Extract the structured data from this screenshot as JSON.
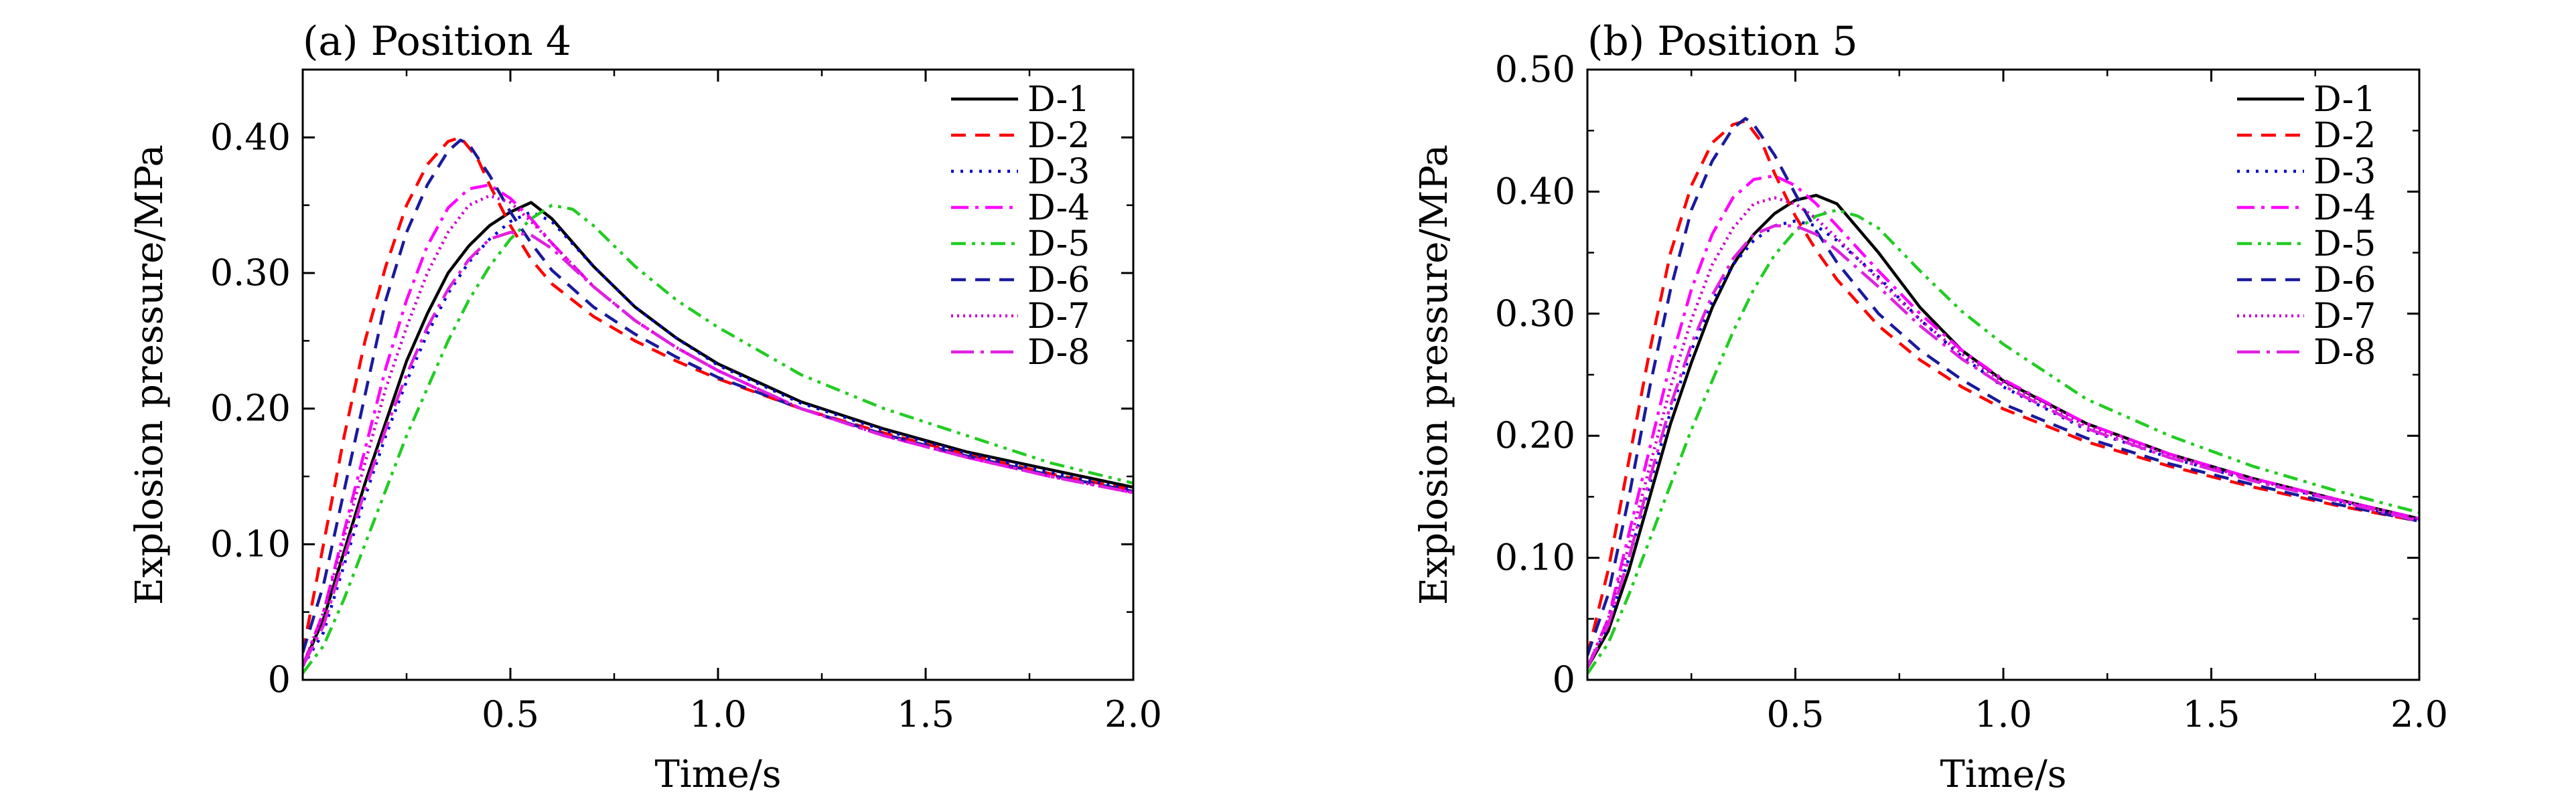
{
  "chart_data": [
    {
      "type": "line",
      "title": "(a) Position 4",
      "xlabel": "Time/s",
      "ylabel": "Explosion pressure/MPa",
      "xlim": [
        0,
        2.0
      ],
      "ylim": [
        0,
        0.45
      ],
      "xticks": [
        0.5,
        1.0,
        1.5,
        2.0
      ],
      "xtick_labels": [
        "0.5",
        "1.0",
        "1.5",
        "2.0"
      ],
      "yticks": [
        0,
        0.1,
        0.2,
        0.3,
        0.4
      ],
      "ytick_labels": [
        "0",
        "0.10",
        "0.20",
        "0.30",
        "0.40"
      ],
      "grid": false,
      "legend_position": "top-right",
      "series": [
        {
          "name": "D-1",
          "color": "#000000",
          "dash": "solid",
          "x": [
            0,
            0.05,
            0.1,
            0.15,
            0.2,
            0.25,
            0.3,
            0.35,
            0.4,
            0.45,
            0.5,
            0.55,
            0.6,
            0.7,
            0.8,
            0.9,
            1.0,
            1.2,
            1.4,
            1.6,
            1.8,
            2.0
          ],
          "y": [
            0.01,
            0.045,
            0.095,
            0.145,
            0.19,
            0.235,
            0.27,
            0.3,
            0.32,
            0.335,
            0.345,
            0.352,
            0.34,
            0.305,
            0.275,
            0.252,
            0.233,
            0.205,
            0.185,
            0.168,
            0.155,
            0.142
          ]
        },
        {
          "name": "D-2",
          "color": "#ff0000",
          "dash": "dashed",
          "x": [
            0,
            0.05,
            0.1,
            0.15,
            0.2,
            0.25,
            0.3,
            0.35,
            0.38,
            0.42,
            0.45,
            0.5,
            0.55,
            0.6,
            0.7,
            0.8,
            0.9,
            1.0,
            1.2,
            1.4,
            1.6,
            1.8,
            2.0
          ],
          "y": [
            0.02,
            0.1,
            0.18,
            0.25,
            0.305,
            0.35,
            0.38,
            0.397,
            0.4,
            0.385,
            0.365,
            0.335,
            0.31,
            0.292,
            0.268,
            0.25,
            0.235,
            0.222,
            0.2,
            0.182,
            0.166,
            0.152,
            0.14
          ]
        },
        {
          "name": "D-3",
          "color": "#0000cc",
          "dash": "dotted",
          "x": [
            0,
            0.05,
            0.1,
            0.15,
            0.2,
            0.25,
            0.3,
            0.35,
            0.4,
            0.45,
            0.5,
            0.55,
            0.6,
            0.7,
            0.8,
            0.9,
            1.0,
            1.2,
            1.4,
            1.6,
            1.8,
            2.0
          ],
          "y": [
            0.01,
            0.035,
            0.085,
            0.135,
            0.18,
            0.22,
            0.255,
            0.285,
            0.308,
            0.325,
            0.338,
            0.345,
            0.338,
            0.305,
            0.275,
            0.252,
            0.232,
            0.204,
            0.184,
            0.167,
            0.153,
            0.14
          ]
        },
        {
          "name": "D-4",
          "color": "#ff00ff",
          "dash": "dashdot",
          "x": [
            0,
            0.05,
            0.1,
            0.15,
            0.2,
            0.25,
            0.3,
            0.35,
            0.4,
            0.45,
            0.5,
            0.55,
            0.6,
            0.7,
            0.8,
            0.9,
            1.0,
            1.2,
            1.4,
            1.6,
            1.8,
            2.0
          ],
          "y": [
            0.01,
            0.05,
            0.11,
            0.17,
            0.23,
            0.28,
            0.32,
            0.348,
            0.362,
            0.365,
            0.355,
            0.34,
            0.322,
            0.29,
            0.265,
            0.245,
            0.228,
            0.2,
            0.18,
            0.164,
            0.15,
            0.138
          ]
        },
        {
          "name": "D-5",
          "color": "#22cc22",
          "dash": "dashdotdot",
          "x": [
            0,
            0.05,
            0.1,
            0.15,
            0.2,
            0.25,
            0.3,
            0.35,
            0.4,
            0.45,
            0.5,
            0.55,
            0.6,
            0.65,
            0.7,
            0.8,
            0.9,
            1.0,
            1.2,
            1.4,
            1.6,
            1.8,
            2.0
          ],
          "y": [
            0.005,
            0.025,
            0.06,
            0.1,
            0.14,
            0.18,
            0.215,
            0.25,
            0.28,
            0.305,
            0.325,
            0.34,
            0.35,
            0.347,
            0.335,
            0.305,
            0.28,
            0.26,
            0.225,
            0.2,
            0.18,
            0.16,
            0.145
          ]
        },
        {
          "name": "D-6",
          "color": "#1a1a9e",
          "dash": "dashed",
          "x": [
            0,
            0.05,
            0.1,
            0.15,
            0.2,
            0.25,
            0.3,
            0.35,
            0.38,
            0.4,
            0.45,
            0.5,
            0.55,
            0.6,
            0.7,
            0.8,
            0.9,
            1.0,
            1.2,
            1.4,
            1.6,
            1.8,
            2.0
          ],
          "y": [
            0.02,
            0.07,
            0.14,
            0.21,
            0.28,
            0.33,
            0.365,
            0.39,
            0.398,
            0.395,
            0.372,
            0.345,
            0.322,
            0.302,
            0.275,
            0.255,
            0.238,
            0.223,
            0.2,
            0.181,
            0.165,
            0.151,
            0.139
          ]
        },
        {
          "name": "D-7",
          "color": "#cc00cc",
          "dash": "densedot",
          "x": [
            0,
            0.05,
            0.1,
            0.15,
            0.2,
            0.25,
            0.3,
            0.35,
            0.4,
            0.45,
            0.5,
            0.55,
            0.6,
            0.7,
            0.8,
            0.9,
            1.0,
            1.2,
            1.4,
            1.6,
            1.8,
            2.0
          ],
          "y": [
            0.01,
            0.05,
            0.105,
            0.16,
            0.215,
            0.26,
            0.3,
            0.33,
            0.35,
            0.357,
            0.352,
            0.338,
            0.322,
            0.29,
            0.265,
            0.245,
            0.228,
            0.2,
            0.18,
            0.164,
            0.15,
            0.138
          ]
        },
        {
          "name": "D-8",
          "color": "#e020e0",
          "dash": "longdashdot",
          "x": [
            0,
            0.05,
            0.1,
            0.15,
            0.2,
            0.25,
            0.3,
            0.35,
            0.4,
            0.45,
            0.5,
            0.55,
            0.6,
            0.7,
            0.8,
            0.9,
            1.0,
            1.2,
            1.4,
            1.6,
            1.8,
            2.0
          ],
          "y": [
            0.01,
            0.04,
            0.09,
            0.14,
            0.185,
            0.225,
            0.26,
            0.288,
            0.31,
            0.325,
            0.33,
            0.328,
            0.318,
            0.29,
            0.265,
            0.245,
            0.228,
            0.2,
            0.18,
            0.164,
            0.15,
            0.138
          ]
        }
      ]
    },
    {
      "type": "line",
      "title": "(b) Position 5",
      "xlabel": "Time/s",
      "ylabel": "Explosion pressure/MPa",
      "xlim": [
        0,
        2.0
      ],
      "ylim": [
        0,
        0.5
      ],
      "xticks": [
        0.5,
        1.0,
        1.5,
        2.0
      ],
      "xtick_labels": [
        "0.5",
        "1.0",
        "1.5",
        "2.0"
      ],
      "yticks": [
        0,
        0.1,
        0.2,
        0.3,
        0.4,
        0.5
      ],
      "ytick_labels": [
        "0",
        "0.10",
        "0.20",
        "0.30",
        "0.40",
        "0.50"
      ],
      "grid": false,
      "legend_position": "top-right",
      "series": [
        {
          "name": "D-1",
          "color": "#000000",
          "dash": "solid",
          "x": [
            0,
            0.05,
            0.1,
            0.15,
            0.2,
            0.25,
            0.3,
            0.35,
            0.4,
            0.45,
            0.5,
            0.55,
            0.6,
            0.7,
            0.8,
            0.9,
            1.0,
            1.2,
            1.4,
            1.6,
            1.8,
            2.0
          ],
          "y": [
            0.01,
            0.04,
            0.09,
            0.15,
            0.21,
            0.26,
            0.305,
            0.34,
            0.365,
            0.382,
            0.393,
            0.397,
            0.39,
            0.35,
            0.305,
            0.27,
            0.245,
            0.21,
            0.185,
            0.165,
            0.148,
            0.132
          ]
        },
        {
          "name": "D-2",
          "color": "#ff0000",
          "dash": "dashed",
          "x": [
            0,
            0.05,
            0.1,
            0.15,
            0.2,
            0.25,
            0.3,
            0.35,
            0.38,
            0.42,
            0.45,
            0.5,
            0.55,
            0.6,
            0.7,
            0.8,
            0.9,
            1.0,
            1.2,
            1.4,
            1.6,
            1.8,
            2.0
          ],
          "y": [
            0.02,
            0.09,
            0.18,
            0.27,
            0.35,
            0.405,
            0.44,
            0.455,
            0.458,
            0.44,
            0.415,
            0.38,
            0.352,
            0.328,
            0.29,
            0.262,
            0.24,
            0.222,
            0.195,
            0.175,
            0.158,
            0.143,
            0.13
          ]
        },
        {
          "name": "D-3",
          "color": "#0000cc",
          "dash": "dotted",
          "x": [
            0,
            0.05,
            0.1,
            0.15,
            0.2,
            0.25,
            0.3,
            0.35,
            0.4,
            0.45,
            0.5,
            0.55,
            0.6,
            0.7,
            0.8,
            0.9,
            1.0,
            1.2,
            1.4,
            1.6,
            1.8,
            2.0
          ],
          "y": [
            0.01,
            0.045,
            0.1,
            0.16,
            0.22,
            0.27,
            0.31,
            0.34,
            0.36,
            0.372,
            0.376,
            0.372,
            0.36,
            0.33,
            0.295,
            0.265,
            0.24,
            0.205,
            0.182,
            0.163,
            0.147,
            0.13
          ]
        },
        {
          "name": "D-4",
          "color": "#ff00ff",
          "dash": "dashdot",
          "x": [
            0,
            0.05,
            0.1,
            0.15,
            0.2,
            0.25,
            0.3,
            0.35,
            0.4,
            0.45,
            0.5,
            0.55,
            0.6,
            0.7,
            0.8,
            0.9,
            1.0,
            1.2,
            1.4,
            1.6,
            1.8,
            2.0
          ],
          "y": [
            0.01,
            0.05,
            0.12,
            0.19,
            0.26,
            0.32,
            0.365,
            0.395,
            0.41,
            0.413,
            0.405,
            0.39,
            0.372,
            0.335,
            0.3,
            0.27,
            0.246,
            0.21,
            0.185,
            0.165,
            0.148,
            0.132
          ]
        },
        {
          "name": "D-5",
          "color": "#22cc22",
          "dash": "dashdotdot",
          "x": [
            0,
            0.05,
            0.1,
            0.15,
            0.2,
            0.25,
            0.3,
            0.35,
            0.4,
            0.45,
            0.5,
            0.55,
            0.6,
            0.65,
            0.7,
            0.8,
            0.9,
            1.0,
            1.2,
            1.4,
            1.6,
            1.8,
            2.0
          ],
          "y": [
            0.005,
            0.03,
            0.07,
            0.115,
            0.16,
            0.205,
            0.245,
            0.285,
            0.32,
            0.348,
            0.368,
            0.38,
            0.385,
            0.38,
            0.37,
            0.335,
            0.302,
            0.275,
            0.23,
            0.2,
            0.175,
            0.155,
            0.137
          ]
        },
        {
          "name": "D-6",
          "color": "#1a1a9e",
          "dash": "dashed",
          "x": [
            0,
            0.05,
            0.1,
            0.15,
            0.2,
            0.25,
            0.3,
            0.35,
            0.38,
            0.4,
            0.45,
            0.5,
            0.55,
            0.6,
            0.7,
            0.8,
            0.9,
            1.0,
            1.2,
            1.4,
            1.6,
            1.8,
            2.0
          ],
          "y": [
            0.02,
            0.07,
            0.15,
            0.24,
            0.32,
            0.385,
            0.425,
            0.452,
            0.46,
            0.455,
            0.43,
            0.398,
            0.368,
            0.342,
            0.3,
            0.27,
            0.246,
            0.226,
            0.198,
            0.177,
            0.16,
            0.144,
            0.13
          ]
        },
        {
          "name": "D-7",
          "color": "#cc00cc",
          "dash": "densedot",
          "x": [
            0,
            0.05,
            0.1,
            0.15,
            0.2,
            0.25,
            0.3,
            0.35,
            0.4,
            0.45,
            0.5,
            0.55,
            0.6,
            0.7,
            0.8,
            0.9,
            1.0,
            1.2,
            1.4,
            1.6,
            1.8,
            2.0
          ],
          "y": [
            0.01,
            0.05,
            0.11,
            0.175,
            0.24,
            0.295,
            0.34,
            0.37,
            0.39,
            0.395,
            0.39,
            0.378,
            0.362,
            0.328,
            0.295,
            0.267,
            0.244,
            0.208,
            0.184,
            0.164,
            0.148,
            0.131
          ]
        },
        {
          "name": "D-8",
          "color": "#e020e0",
          "dash": "longdashdot",
          "x": [
            0,
            0.05,
            0.1,
            0.15,
            0.2,
            0.25,
            0.3,
            0.35,
            0.4,
            0.45,
            0.5,
            0.55,
            0.6,
            0.7,
            0.8,
            0.9,
            1.0,
            1.2,
            1.4,
            1.6,
            1.8,
            2.0
          ],
          "y": [
            0.01,
            0.045,
            0.1,
            0.165,
            0.225,
            0.275,
            0.315,
            0.345,
            0.365,
            0.372,
            0.372,
            0.365,
            0.352,
            0.322,
            0.29,
            0.263,
            0.241,
            0.206,
            0.182,
            0.163,
            0.147,
            0.13
          ]
        }
      ]
    }
  ]
}
